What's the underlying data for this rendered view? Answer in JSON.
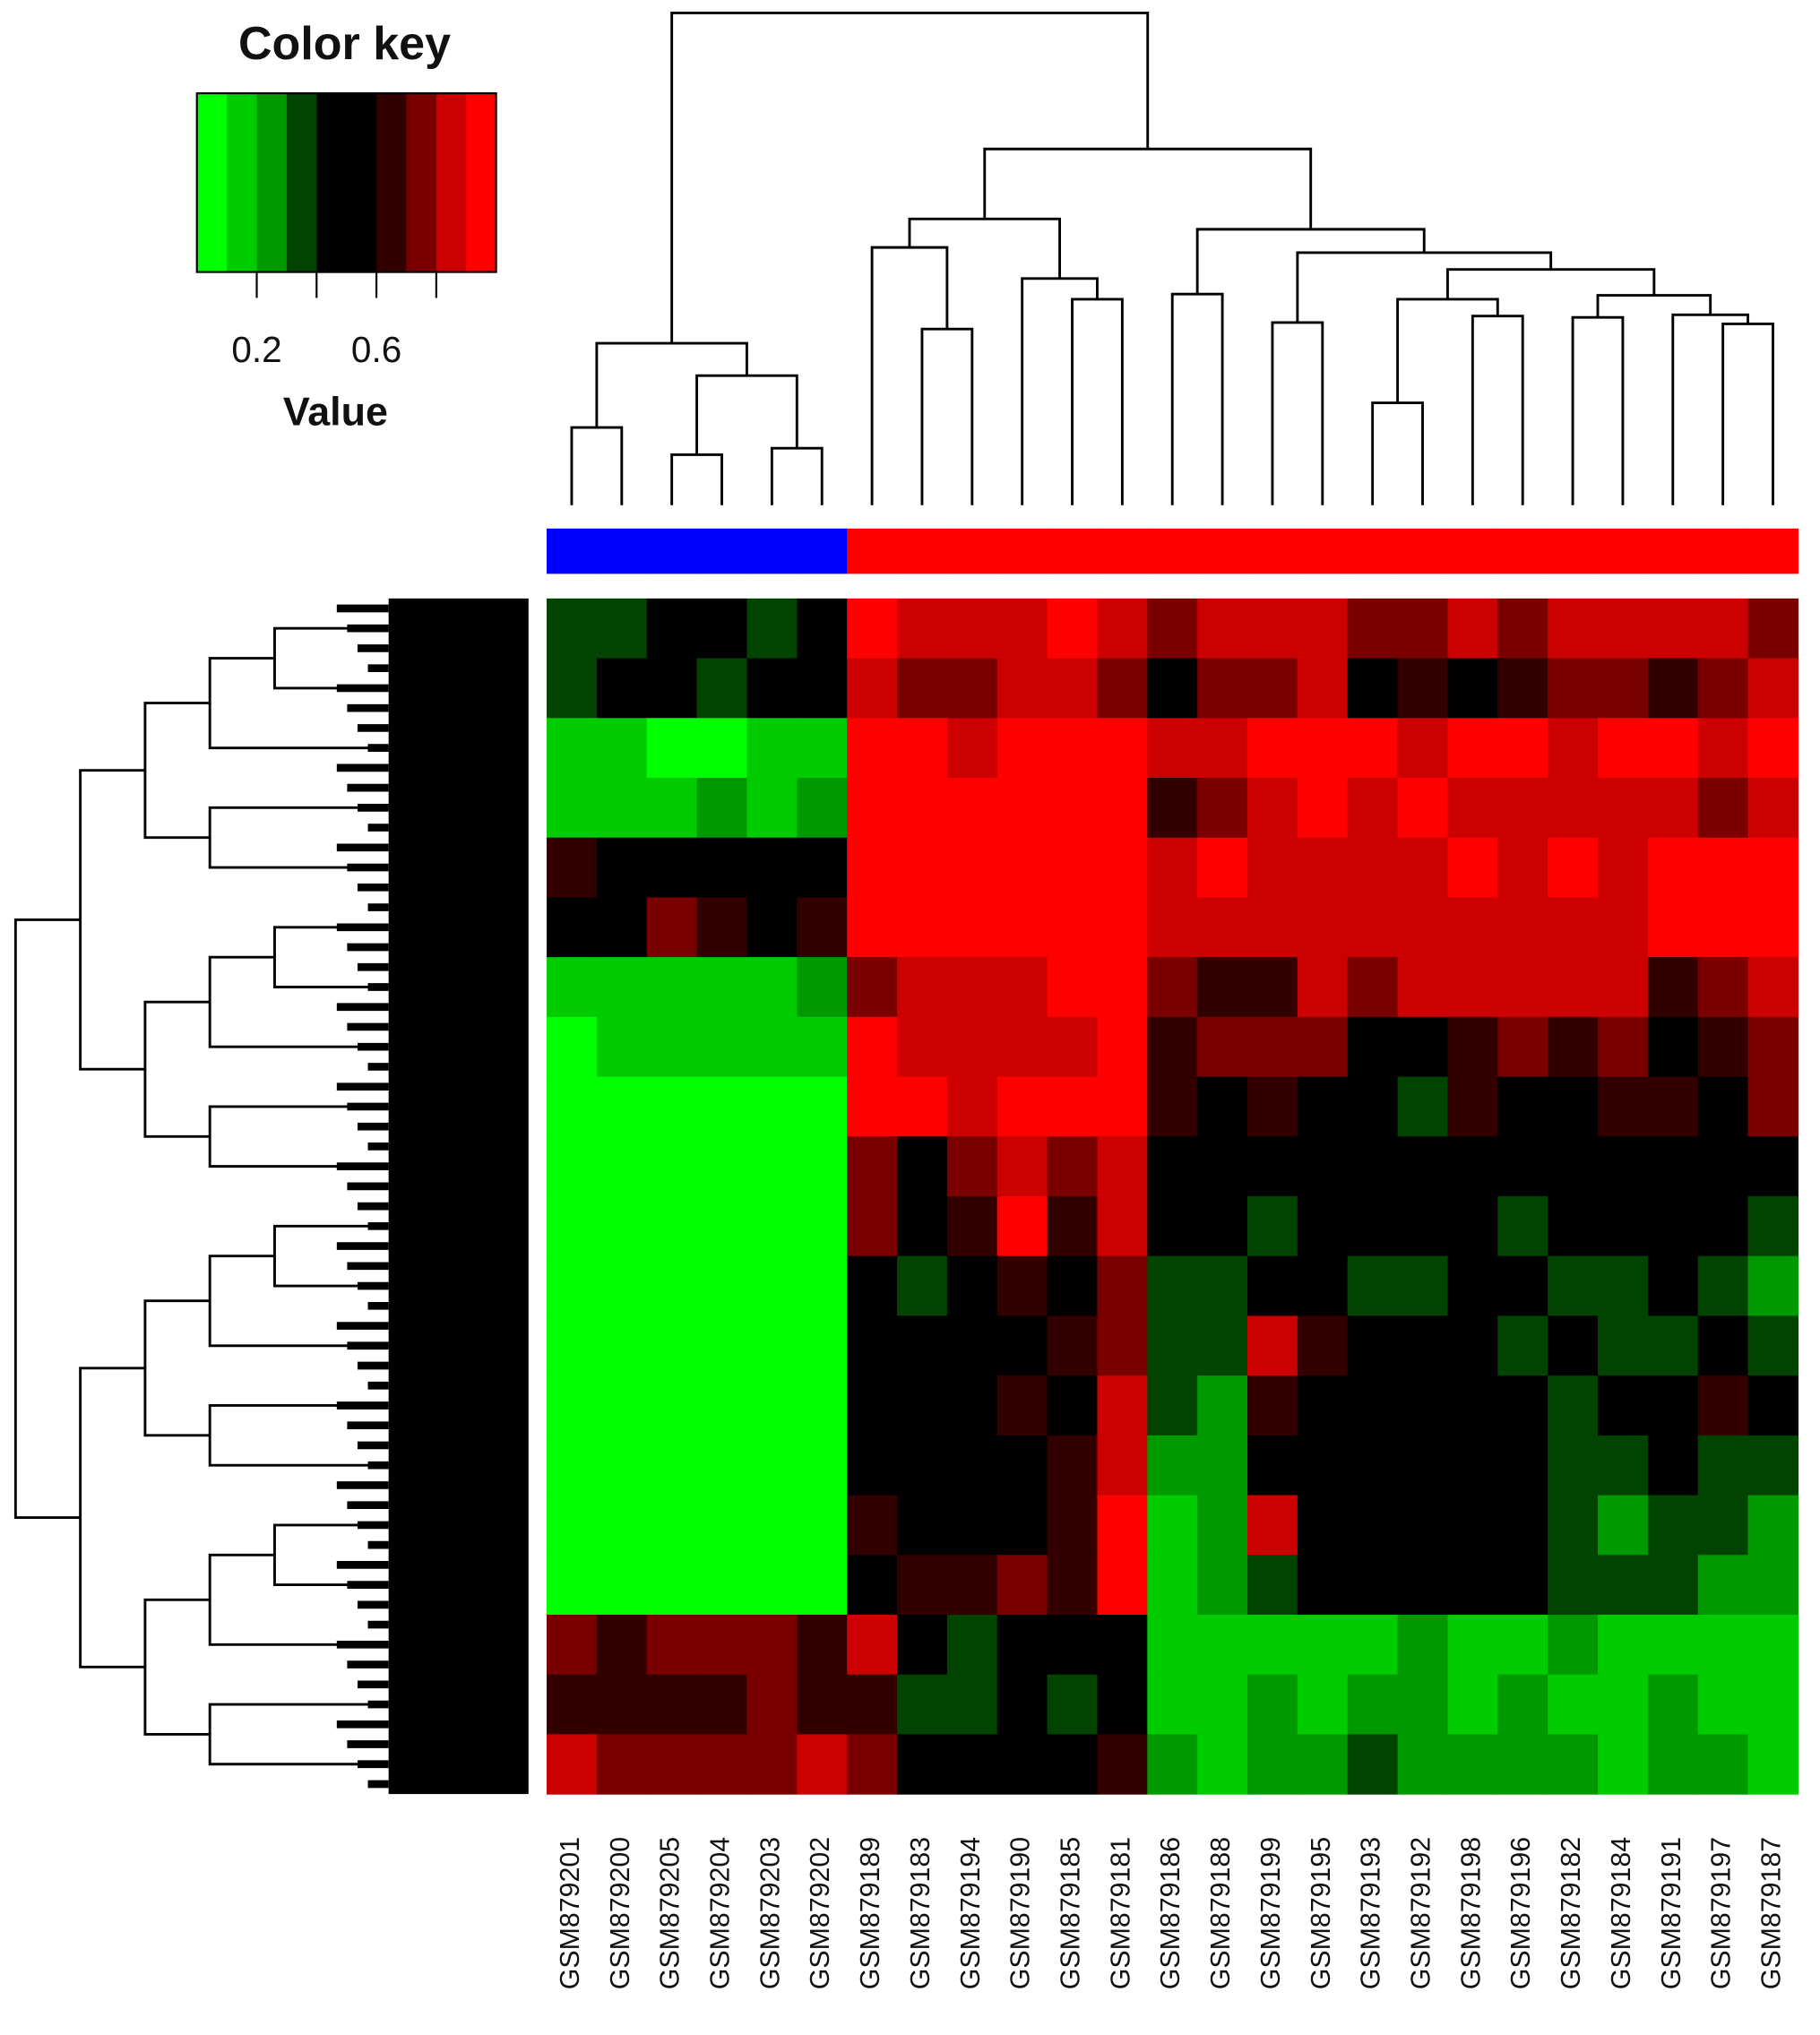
{
  "chart_data": {
    "type": "heatmap",
    "key_title": "Color key",
    "key_label": "Value",
    "key_lim": [
      0,
      1
    ],
    "key_ticks": [
      0.2,
      0.6
    ],
    "key_minor_ticks": [
      0.4,
      0.8
    ],
    "key_colors": [
      "#00ff00",
      "#00cc00",
      "#009900",
      "#004400",
      "#000000",
      "#000000",
      "#330000",
      "#7a0000",
      "#cc0000",
      "#ff0000"
    ],
    "columns": [
      "GSM879201",
      "GSM879200",
      "GSM879205",
      "GSM879204",
      "GSM879203",
      "GSM879202",
      "GSM879189",
      "GSM879183",
      "GSM879194",
      "GSM879190",
      "GSM879185",
      "GSM879181",
      "GSM879186",
      "GSM879188",
      "GSM879199",
      "GSM879195",
      "GSM879193",
      "GSM879192",
      "GSM879198",
      "GSM879196",
      "GSM879182",
      "GSM879184",
      "GSM879191",
      "GSM879197",
      "GSM879187"
    ],
    "column_side_colors": [
      "#0000ff",
      "#0000ff",
      "#0000ff",
      "#0000ff",
      "#0000ff",
      "#0000ff",
      "#ff0000",
      "#ff0000",
      "#ff0000",
      "#ff0000",
      "#ff0000",
      "#ff0000",
      "#ff0000",
      "#ff0000",
      "#ff0000",
      "#ff0000",
      "#ff0000",
      "#ff0000",
      "#ff0000",
      "#ff0000",
      "#ff0000",
      "#ff0000",
      "#ff0000",
      "#ff0000",
      "#ff0000"
    ],
    "matrix": [
      [
        0.35,
        0.3,
        0.45,
        0.4,
        0.3,
        0.4,
        0.9,
        0.85,
        0.8,
        0.85,
        0.9,
        0.85,
        0.75,
        0.8,
        0.8,
        0.85,
        0.75,
        0.7,
        0.8,
        0.75,
        0.8,
        0.85,
        0.8,
        0.85,
        0.75
      ],
      [
        0.3,
        0.4,
        0.55,
        0.35,
        0.4,
        0.45,
        0.8,
        0.75,
        0.7,
        0.8,
        0.85,
        0.75,
        0.45,
        0.7,
        0.75,
        0.8,
        0.55,
        0.6,
        0.5,
        0.65,
        0.7,
        0.75,
        0.6,
        0.7,
        0.8
      ],
      [
        0.1,
        0.1,
        0.05,
        0.05,
        0.1,
        0.1,
        0.9,
        0.9,
        0.85,
        0.95,
        0.9,
        0.9,
        0.85,
        0.8,
        0.9,
        0.95,
        0.9,
        0.85,
        0.95,
        0.9,
        0.85,
        0.95,
        0.9,
        0.85,
        0.9
      ],
      [
        0.15,
        0.1,
        0.15,
        0.2,
        0.15,
        0.25,
        0.95,
        0.9,
        0.9,
        0.95,
        0.9,
        0.95,
        0.6,
        0.75,
        0.85,
        0.9,
        0.85,
        0.9,
        0.85,
        0.8,
        0.8,
        0.85,
        0.85,
        0.7,
        0.85
      ],
      [
        0.6,
        0.55,
        0.45,
        0.5,
        0.55,
        0.5,
        0.95,
        0.95,
        0.95,
        0.95,
        0.95,
        0.95,
        0.85,
        0.9,
        0.85,
        0.85,
        0.8,
        0.85,
        0.9,
        0.85,
        0.9,
        0.85,
        0.9,
        0.9,
        0.9
      ],
      [
        0.45,
        0.5,
        0.75,
        0.6,
        0.5,
        0.65,
        0.9,
        0.95,
        0.95,
        0.95,
        0.95,
        0.95,
        0.8,
        0.85,
        0.85,
        0.8,
        0.85,
        0.85,
        0.8,
        0.85,
        0.85,
        0.85,
        0.9,
        0.95,
        0.95
      ],
      [
        0.1,
        0.15,
        0.15,
        0.15,
        0.1,
        0.2,
        0.75,
        0.8,
        0.85,
        0.85,
        0.95,
        0.9,
        0.7,
        0.65,
        0.6,
        0.8,
        0.75,
        0.85,
        0.8,
        0.85,
        0.85,
        0.8,
        0.65,
        0.7,
        0.85
      ],
      [
        0.05,
        0.1,
        0.1,
        0.1,
        0.1,
        0.1,
        0.9,
        0.85,
        0.8,
        0.85,
        0.8,
        0.9,
        0.6,
        0.7,
        0.75,
        0.7,
        0.55,
        0.45,
        0.65,
        0.7,
        0.6,
        0.7,
        0.55,
        0.65,
        0.7
      ],
      [
        0.05,
        0.05,
        0.05,
        0.05,
        0.05,
        0.05,
        0.95,
        0.9,
        0.85,
        0.9,
        0.9,
        0.95,
        0.65,
        0.55,
        0.6,
        0.5,
        0.45,
        0.35,
        0.6,
        0.55,
        0.5,
        0.6,
        0.65,
        0.55,
        0.75
      ],
      [
        0.05,
        0.05,
        0.05,
        0.05,
        0.05,
        0.05,
        0.7,
        0.55,
        0.75,
        0.85,
        0.7,
        0.85,
        0.5,
        0.4,
        0.55,
        0.45,
        0.4,
        0.45,
        0.5,
        0.4,
        0.5,
        0.45,
        0.5,
        0.55,
        0.4
      ],
      [
        0.02,
        0.05,
        0.05,
        0.05,
        0.02,
        0.05,
        0.75,
        0.5,
        0.6,
        0.9,
        0.65,
        0.8,
        0.45,
        0.4,
        0.35,
        0.5,
        0.45,
        0.5,
        0.4,
        0.35,
        0.4,
        0.45,
        0.5,
        0.4,
        0.35
      ],
      [
        0.02,
        0.02,
        0.02,
        0.02,
        0.02,
        0.02,
        0.4,
        0.35,
        0.55,
        0.6,
        0.5,
        0.7,
        0.3,
        0.35,
        0.45,
        0.4,
        0.35,
        0.3,
        0.4,
        0.45,
        0.3,
        0.35,
        0.4,
        0.3,
        0.25
      ],
      [
        0.02,
        0.02,
        0.02,
        0.02,
        0.02,
        0.02,
        0.45,
        0.4,
        0.5,
        0.55,
        0.6,
        0.75,
        0.35,
        0.3,
        0.8,
        0.6,
        0.45,
        0.4,
        0.45,
        0.35,
        0.4,
        0.3,
        0.35,
        0.4,
        0.3
      ],
      [
        0.02,
        0.02,
        0.02,
        0.02,
        0.02,
        0.02,
        0.5,
        0.45,
        0.55,
        0.6,
        0.55,
        0.8,
        0.3,
        0.25,
        0.65,
        0.55,
        0.5,
        0.45,
        0.55,
        0.4,
        0.35,
        0.4,
        0.55,
        0.6,
        0.45
      ],
      [
        0.02,
        0.02,
        0.02,
        0.02,
        0.02,
        0.02,
        0.55,
        0.4,
        0.5,
        0.45,
        0.6,
        0.85,
        0.25,
        0.2,
        0.4,
        0.5,
        0.45,
        0.5,
        0.45,
        0.5,
        0.3,
        0.35,
        0.4,
        0.35,
        0.3
      ],
      [
        0.02,
        0.02,
        0.02,
        0.02,
        0.02,
        0.02,
        0.6,
        0.5,
        0.4,
        0.55,
        0.65,
        0.9,
        0.15,
        0.2,
        0.85,
        0.55,
        0.5,
        0.45,
        0.5,
        0.4,
        0.3,
        0.25,
        0.3,
        0.35,
        0.25
      ],
      [
        0.02,
        0.02,
        0.02,
        0.02,
        0.02,
        0.02,
        0.55,
        0.65,
        0.6,
        0.7,
        0.6,
        0.9,
        0.1,
        0.2,
        0.3,
        0.45,
        0.5,
        0.55,
        0.45,
        0.4,
        0.3,
        0.35,
        0.3,
        0.25,
        0.2
      ],
      [
        0.7,
        0.65,
        0.75,
        0.7,
        0.75,
        0.65,
        0.8,
        0.4,
        0.35,
        0.45,
        0.5,
        0.4,
        0.1,
        0.1,
        0.15,
        0.1,
        0.15,
        0.2,
        0.1,
        0.15,
        0.2,
        0.1,
        0.15,
        0.1,
        0.1
      ],
      [
        0.6,
        0.65,
        0.6,
        0.65,
        0.7,
        0.6,
        0.6,
        0.3,
        0.35,
        0.4,
        0.35,
        0.45,
        0.15,
        0.1,
        0.2,
        0.15,
        0.2,
        0.25,
        0.15,
        0.2,
        0.15,
        0.1,
        0.2,
        0.15,
        0.1
      ],
      [
        0.8,
        0.75,
        0.7,
        0.75,
        0.7,
        0.8,
        0.7,
        0.45,
        0.5,
        0.55,
        0.5,
        0.6,
        0.2,
        0.15,
        0.25,
        0.2,
        0.3,
        0.25,
        0.2,
        0.25,
        0.2,
        0.15,
        0.25,
        0.2,
        0.15
      ]
    ]
  }
}
